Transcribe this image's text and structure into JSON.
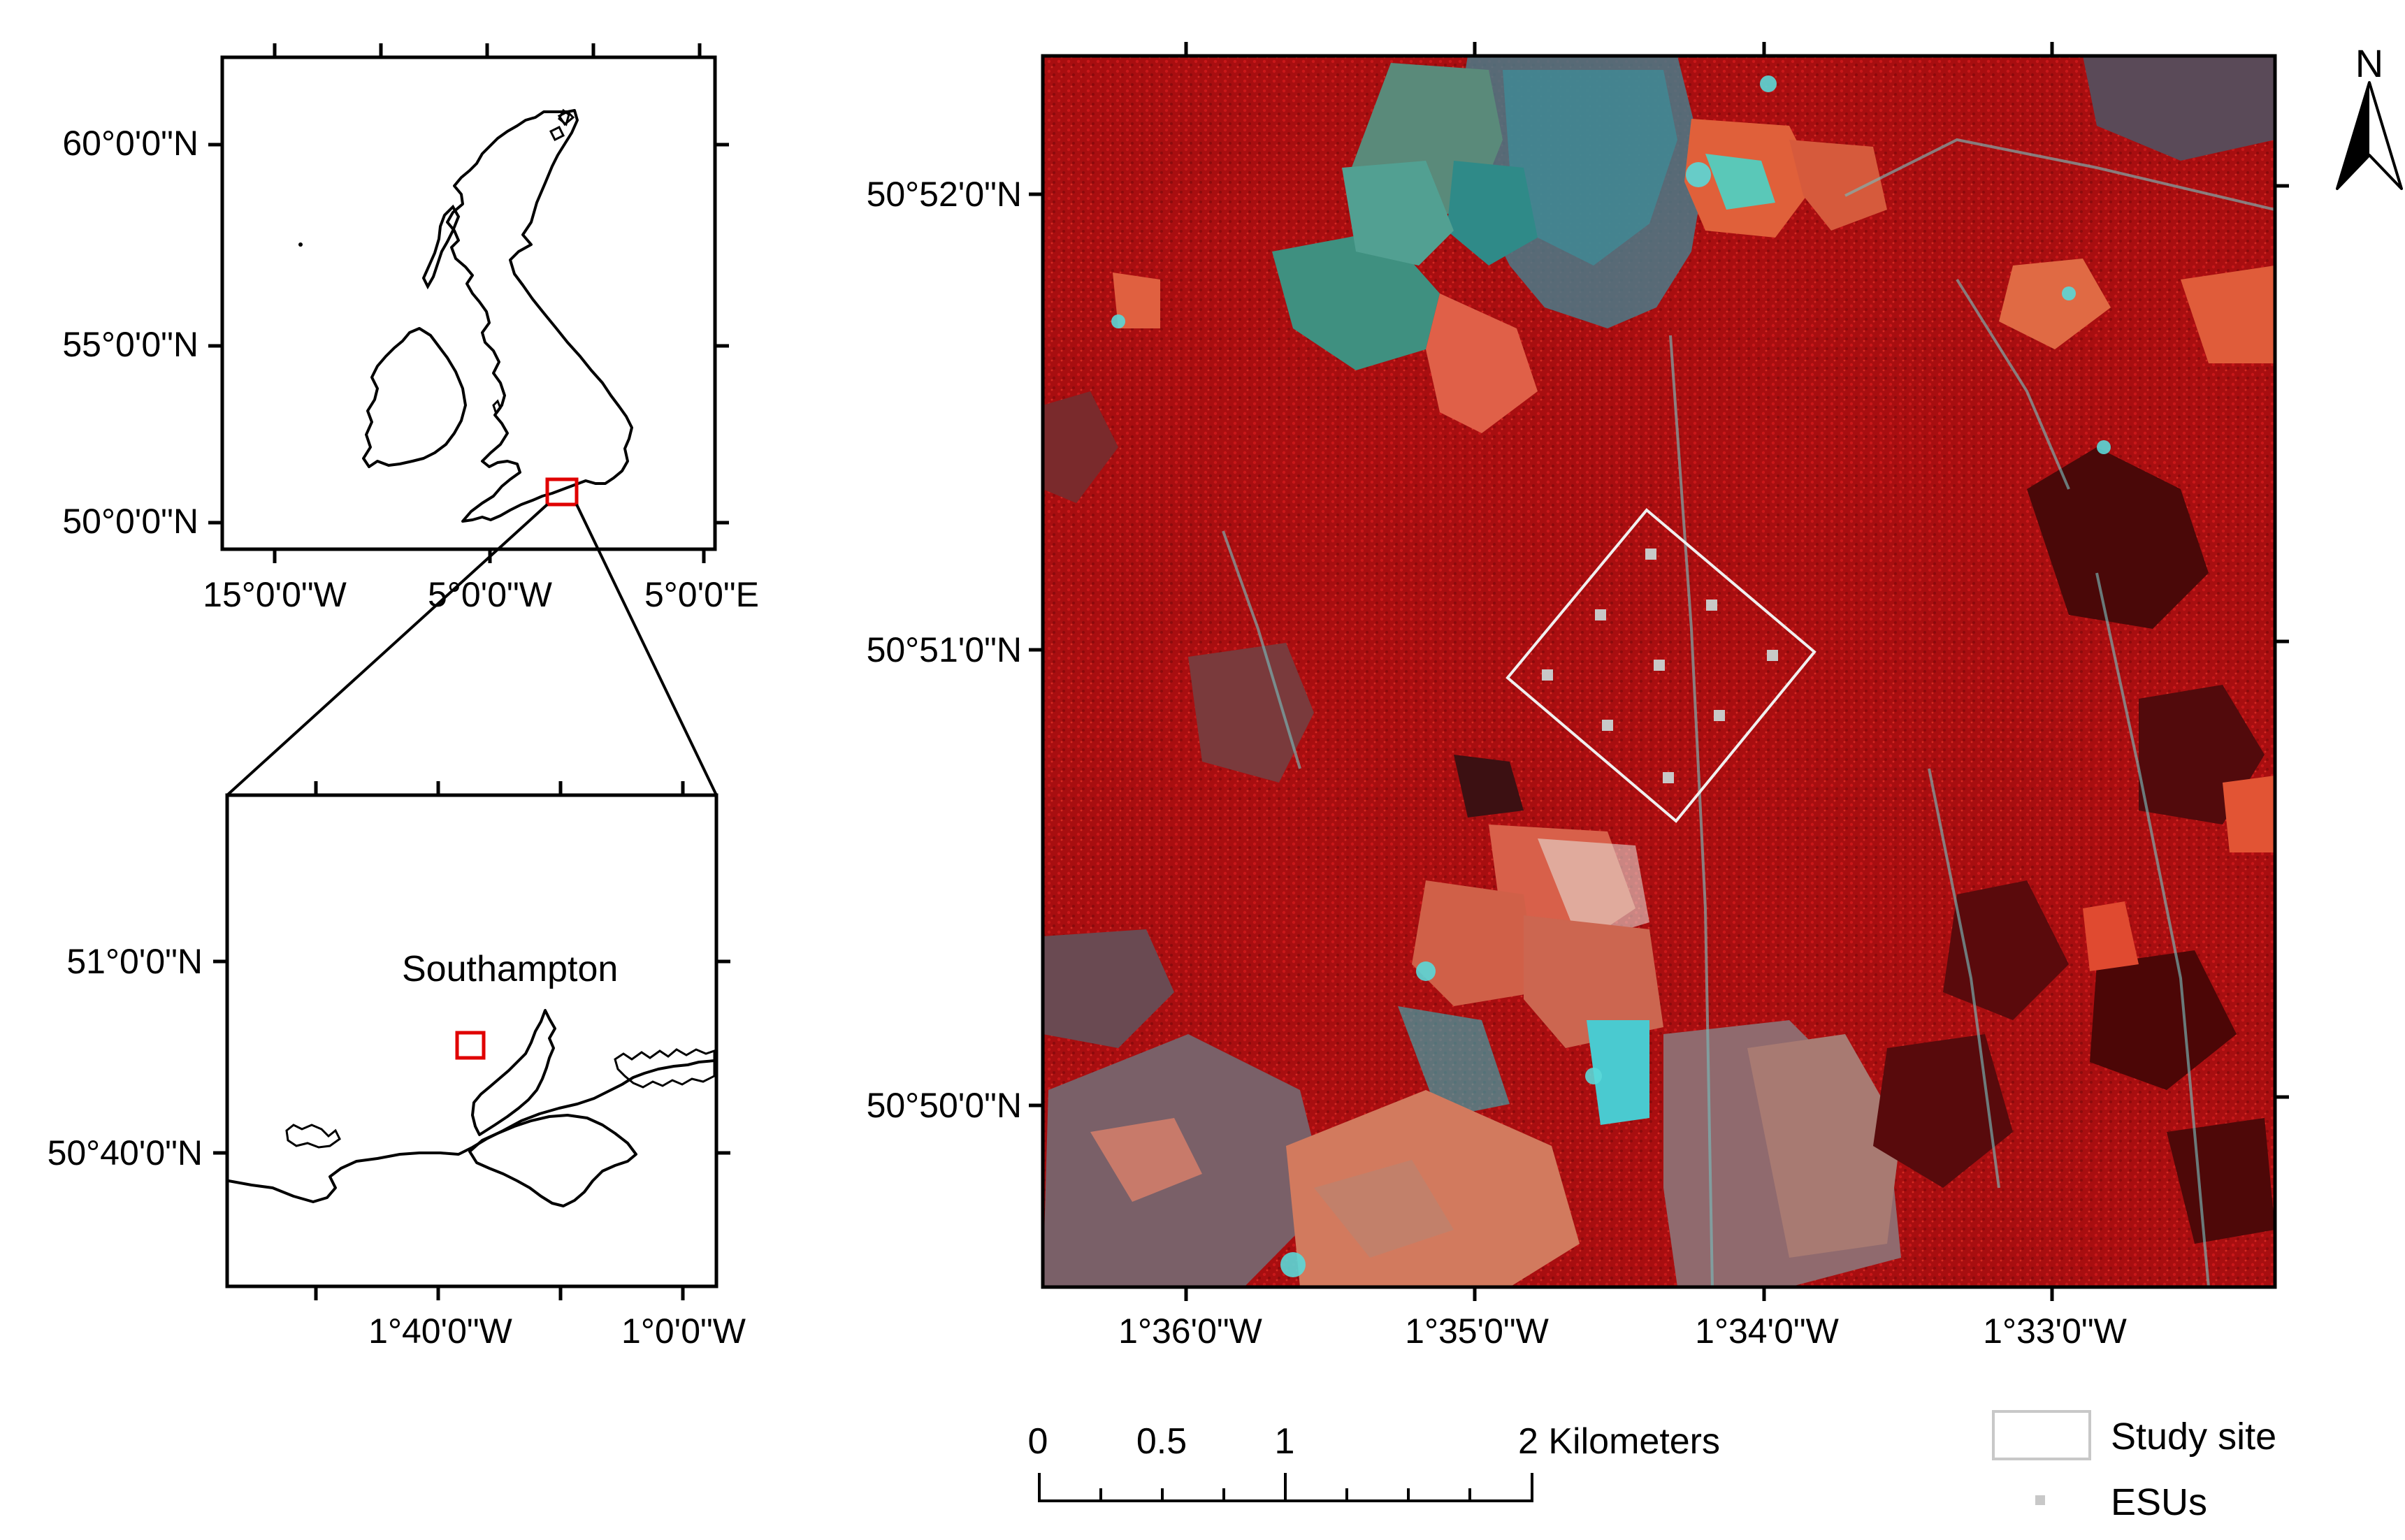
{
  "overview_map": {
    "lat_labels": [
      "60°0'0\"N",
      "55°0'0\"N",
      "50°0'0\"N"
    ],
    "lon_labels": [
      "15°0'0\"W",
      "5°0'0\"W",
      "5°0'0\"E"
    ]
  },
  "regional_map": {
    "place_label": "Southampton",
    "lat_labels": [
      "51°0'0\"N",
      "50°40'0\"N"
    ],
    "lon_labels": [
      "1°40'0\"W",
      "1°0'0\"W"
    ]
  },
  "study_map": {
    "lat_labels": [
      "50°52'0\"N",
      "50°51'0\"N",
      "50°50'0\"N"
    ],
    "lon_labels": [
      "1°36'0\"W",
      "1°35'0\"W",
      "1°34'0\"W",
      "1°33'0\"W"
    ]
  },
  "north_arrow": {
    "label": "N"
  },
  "scale_bar": {
    "labels": [
      "0",
      "0.5",
      "1",
      "2 Kilometers"
    ]
  },
  "legend": {
    "items": [
      {
        "label": "Study site",
        "symbol": "white-outline-box"
      },
      {
        "label": "ESUs",
        "symbol": "grey-square-marker"
      }
    ]
  },
  "colors": {
    "imagery_red": "#b01010",
    "imagery_orange": "#e0603a",
    "imagery_cyan": "#3fc8c8",
    "highlight_red": "#e00000"
  }
}
